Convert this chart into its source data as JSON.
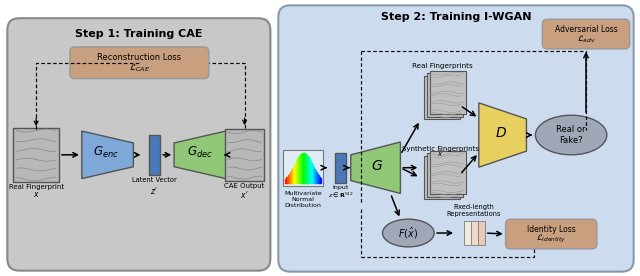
{
  "title_left": "Step 1: Training CAE",
  "title_right": "Step 2: Training I-WGAN",
  "bg_left": "#c8c8c8",
  "bg_right": "#ccdcee",
  "recon_loss_color": "#c8a080",
  "enc_color": "#7da8d8",
  "dec_color": "#90c878",
  "latent_color": "#4a78b8",
  "gen_color": "#90c878",
  "disc_color": "#e8d060",
  "adv_loss_color": "#c8a080",
  "id_loss_color": "#c8a080",
  "real_fake_color": "#a0a8b8",
  "fx_color": "#a0a8b8",
  "recon_loss_text": "Reconstruction Loss",
  "recon_loss_sub": "$\\mathcal{L}_{CAE}$",
  "label_real_fp": "Real Fingerprint",
  "label_real_fp_x": "$x$",
  "label_latent": "Latent Vector",
  "label_latent_z": "$z'$",
  "label_cae_out": "CAE Output",
  "label_cae_out_x": "$x'$",
  "label_multi_normal": "Multivariate\nNormal\nDistribution",
  "label_input_z": "Input\n$z \\in \\mathbf{R}^{512}$",
  "label_real_fps": "Real Fingerprints",
  "label_synth_fps": "Synthetic Fingerprints",
  "label_synth_fps_x": "$\\hat{x}$",
  "label_fixed_rep": "Fixed-length\nRepresentations",
  "label_adv_loss_1": "Adversarial Loss",
  "label_adv_loss_2": "$\\mathcal{L}_{adv}$",
  "label_id_loss_1": "Identity Loss",
  "label_id_loss_2": "$\\mathcal{L}_{identity}$",
  "label_real_fake": "Real or\nFake?",
  "label_G_enc": "$G_{enc}$",
  "label_G_dec": "$G_{dec}$",
  "label_G": "$G$",
  "label_D": "$D$",
  "label_Fx": "$F(\\hat{x})$"
}
